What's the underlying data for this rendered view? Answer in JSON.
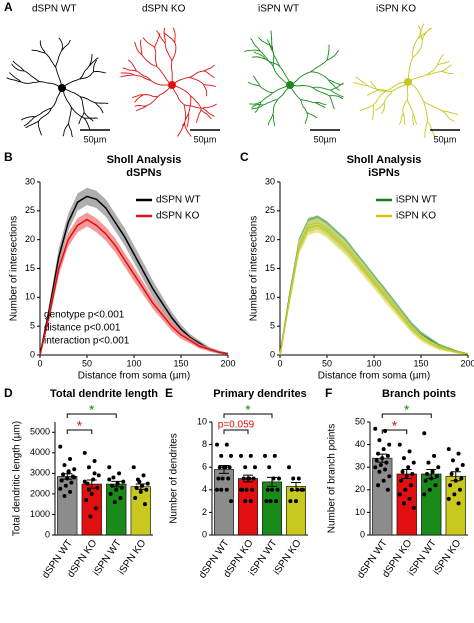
{
  "panel_a": {
    "panel": "A",
    "labels": [
      "dSPN WT",
      "dSPN KO",
      "iSPN WT",
      "iSPN KO"
    ],
    "colors": [
      "#000000",
      "#e01010",
      "#1a8a1a",
      "#c8c81e"
    ],
    "scale_bars": [
      "50µm",
      "50µm",
      "50µm",
      "50µm"
    ]
  },
  "chart_data": [
    {
      "type": "line",
      "panel": "B",
      "title": "Sholl Analysis",
      "subtitle": "dSPNs",
      "xlabel": "Distance from soma (µm)",
      "ylabel": "Number of intersections",
      "x": [
        0,
        10,
        20,
        30,
        40,
        50,
        60,
        70,
        80,
        90,
        100,
        110,
        120,
        130,
        140,
        150,
        160,
        170,
        180,
        190,
        200
      ],
      "series": [
        {
          "name": "dSPN WT",
          "color": "#000000",
          "band_color": "#9a9a9a",
          "values": [
            0,
            8,
            17,
            23,
            26.5,
            27.5,
            27,
            25.5,
            23,
            20.5,
            17.5,
            14.5,
            11.5,
            9,
            6.5,
            4.5,
            3,
            2,
            1,
            0.5,
            0.2
          ],
          "errors": [
            0,
            1,
            1.5,
            1.5,
            1.5,
            1.5,
            1.5,
            1.5,
            1.5,
            1.5,
            1.5,
            1.5,
            1.4,
            1.2,
            1,
            0.8,
            0.6,
            0.5,
            0.4,
            0.3,
            0.2
          ]
        },
        {
          "name": "dSPN KO",
          "color": "#e01010",
          "band_color": "#f08080",
          "values": [
            0,
            7,
            15,
            20,
            22.5,
            23.5,
            22.5,
            21,
            19,
            16.5,
            14,
            11.5,
            9,
            7,
            5,
            3.5,
            2.5,
            1.5,
            1,
            0.5,
            0.2
          ],
          "errors": [
            0,
            1,
            1.2,
            1.2,
            1.2,
            1.2,
            1.2,
            1.2,
            1.2,
            1.2,
            1.2,
            1.1,
            1,
            0.9,
            0.8,
            0.7,
            0.5,
            0.4,
            0.3,
            0.2,
            0.1
          ]
        }
      ],
      "xlim": [
        0,
        200
      ],
      "xticks": [
        0,
        50,
        100,
        150,
        200
      ],
      "ylim": [
        0,
        30
      ],
      "yticks": [
        0,
        5,
        10,
        15,
        20,
        25,
        30
      ],
      "legend": "upper right",
      "annotations": [
        "genotype p<0.001",
        "distance p<0.001",
        "interaction p<0.001"
      ]
    },
    {
      "type": "line",
      "panel": "C",
      "title": "Sholl Analysis",
      "subtitle": "iSPNs",
      "xlabel": "Distance from soma (µm)",
      "ylabel": "Number of intersections",
      "x": [
        0,
        10,
        20,
        30,
        40,
        50,
        60,
        70,
        80,
        90,
        100,
        110,
        120,
        130,
        140,
        150,
        160,
        170,
        180,
        190,
        200
      ],
      "series": [
        {
          "name": "iSPN WT",
          "color": "#1a7a1a",
          "band_color": "#5aa85a",
          "values": [
            0,
            10,
            19,
            22.5,
            23,
            22,
            20.5,
            19,
            17,
            15,
            13,
            11,
            9,
            7,
            5,
            3.5,
            2.5,
            1.5,
            1,
            0.5,
            0.2
          ],
          "errors": [
            0,
            1,
            1.2,
            1.2,
            1.2,
            1.2,
            1.2,
            1.2,
            1.1,
            1.1,
            1,
            1,
            0.9,
            0.8,
            0.7,
            0.6,
            0.5,
            0.4,
            0.3,
            0.2,
            0.1
          ]
        },
        {
          "name": "iSPN KO",
          "color": "#c8c81e",
          "band_color": "#e0e070",
          "values": [
            0,
            9.5,
            18.5,
            22,
            22.5,
            21.5,
            20,
            18.5,
            16.5,
            14.5,
            12.5,
            10.5,
            8.5,
            6.5,
            4.5,
            3,
            2,
            1.2,
            0.8,
            0.4,
            0.2
          ],
          "errors": [
            0,
            1,
            1.2,
            1.2,
            1.2,
            1.2,
            1.2,
            1.2,
            1.1,
            1.1,
            1,
            1,
            0.9,
            0.8,
            0.7,
            0.6,
            0.5,
            0.4,
            0.3,
            0.2,
            0.1
          ]
        }
      ],
      "xlim": [
        0,
        200
      ],
      "xticks": [
        0,
        50,
        100,
        150,
        200
      ],
      "ylim": [
        0,
        30
      ],
      "yticks": [
        0,
        5,
        10,
        15,
        20,
        25,
        30
      ],
      "legend": "upper right"
    },
    {
      "type": "bar",
      "panel": "D",
      "title": "Total dendrite length",
      "ylabel": "Total dendritic length (µm)",
      "categories": [
        "dSPN WT",
        "dSPN KO",
        "iSPN WT",
        "iSPN KO"
      ],
      "colors": [
        "#8c8c8c",
        "#e01010",
        "#1a8a1a",
        "#c8c81e"
      ],
      "values": [
        2850,
        2480,
        2480,
        2350
      ],
      "errors": [
        130,
        200,
        130,
        130
      ],
      "points": [
        [
          4300,
          3700,
          3400,
          3200,
          3050,
          2950,
          2850,
          2750,
          2650,
          2550,
          2400,
          2250,
          2100,
          1900,
          2800,
          3100
        ],
        [
          4000,
          3600,
          3300,
          2900,
          2700,
          2500,
          2300,
          2000,
          1700,
          1300,
          900,
          2600,
          3000,
          2200
        ],
        [
          3300,
          3000,
          2800,
          2600,
          2500,
          2400,
          2300,
          2200,
          2000,
          1800,
          1600,
          2700
        ],
        [
          3300,
          2900,
          2700,
          2500,
          2400,
          2300,
          2200,
          2100,
          1800,
          1500,
          2600
        ]
      ],
      "ylim": [
        0,
        5500
      ],
      "yticks": [
        0,
        1000,
        2000,
        3000,
        4000,
        5000
      ],
      "significance": [
        {
          "label": "*",
          "color": "#e01010",
          "from": 0,
          "to": 1
        },
        {
          "label": "*",
          "color": "#1a8a1a",
          "from": 0,
          "to": 2
        }
      ]
    },
    {
      "type": "bar",
      "panel": "E",
      "title": "Primary dendrites",
      "ylabel": "Number of dendrites",
      "categories": [
        "dSPN WT",
        "dSPN KO",
        "iSPN WT",
        "iSPN KO"
      ],
      "colors": [
        "#8c8c8c",
        "#e01010",
        "#1a8a1a",
        "#c8c81e"
      ],
      "values": [
        5.8,
        5,
        4.7,
        4.3
      ],
      "errors": [
        0.35,
        0.3,
        0.4,
        0.35
      ],
      "points": [
        [
          8,
          8,
          7,
          7,
          6,
          6,
          6,
          6,
          5,
          5,
          5,
          4,
          4,
          4,
          3
        ],
        [
          7,
          7,
          6,
          6,
          5,
          5,
          5,
          5,
          4,
          4,
          4,
          4,
          3,
          3
        ],
        [
          7,
          7,
          6,
          5,
          5,
          4,
          4,
          4,
          3,
          3,
          3
        ],
        [
          6,
          5,
          5,
          4,
          4,
          4,
          4,
          3,
          3
        ]
      ],
      "ylim": [
        0,
        10
      ],
      "yticks": [
        0,
        2,
        4,
        6,
        8,
        10
      ],
      "significance": [
        {
          "label": "p=0.059",
          "color": "#e01010",
          "from": 0,
          "to": 1
        },
        {
          "label": "*",
          "color": "#1a8a1a",
          "from": 0,
          "to": 2
        }
      ]
    },
    {
      "type": "bar",
      "panel": "F",
      "title": "Branch points",
      "ylabel": "Number of branch points",
      "categories": [
        "dSPN WT",
        "dSPN KO",
        "iSPN WT",
        "iSPN KO"
      ],
      "colors": [
        "#8c8c8c",
        "#e01010",
        "#1a8a1a",
        "#c8c81e"
      ],
      "values": [
        34,
        27,
        27,
        26
      ],
      "errors": [
        1.8,
        2,
        2,
        2
      ],
      "points": [
        [
          47,
          46,
          42,
          40,
          38,
          36,
          35,
          34,
          33,
          32,
          31,
          30,
          29,
          28,
          26,
          24,
          22,
          20
        ],
        [
          40,
          37,
          34,
          32,
          30,
          28,
          27,
          26,
          24,
          22,
          20,
          18,
          16,
          14,
          12
        ],
        [
          45,
          35,
          32,
          30,
          28,
          27,
          26,
          25,
          24,
          22,
          20,
          18
        ],
        [
          38,
          36,
          33,
          31,
          29,
          27,
          25,
          24,
          22,
          20,
          18,
          16,
          14
        ]
      ],
      "ylim": [
        0,
        50
      ],
      "yticks": [
        0,
        10,
        20,
        30,
        40,
        50
      ],
      "significance": [
        {
          "label": "*",
          "color": "#e01010",
          "from": 0,
          "to": 1
        },
        {
          "label": "*",
          "color": "#1a8a1a",
          "from": 0,
          "to": 2
        }
      ]
    }
  ]
}
